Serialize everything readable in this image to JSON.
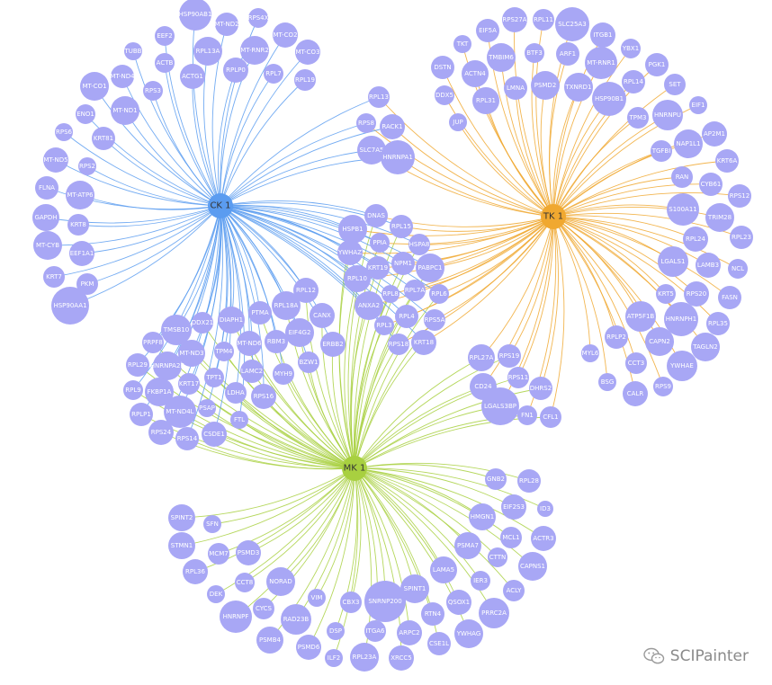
{
  "colors": {
    "ck": "#5b9cf0",
    "tk": "#f0a830",
    "mk": "#a8d040",
    "node": "#a8a7f5",
    "hub_ck": "#5b9cf0",
    "hub_tk": "#f0a830",
    "hub_mk": "#a8d040"
  },
  "hubs": [
    {
      "id": "ck",
      "label": "CK 1"
    },
    {
      "id": "tk",
      "label": "TK 1"
    },
    {
      "id": "mk",
      "label": "MK 1"
    }
  ],
  "nodes": [
    {
      "label": "HSP90AB1",
      "links": [
        "ck"
      ]
    },
    {
      "label": "EEF2",
      "links": [
        "ck"
      ]
    },
    {
      "label": "MT-ND2",
      "links": [
        "ck"
      ]
    },
    {
      "label": "RPS4X",
      "links": [
        "ck"
      ]
    },
    {
      "label": "MT-CO2",
      "links": [
        "ck"
      ]
    },
    {
      "label": "TUBB",
      "links": [
        "ck"
      ]
    },
    {
      "label": "ACTB",
      "links": [
        "ck"
      ]
    },
    {
      "label": "RPL13A",
      "links": [
        "ck"
      ]
    },
    {
      "label": "MT-RNR2",
      "links": [
        "ck"
      ]
    },
    {
      "label": "MT-CO3",
      "links": [
        "ck"
      ]
    },
    {
      "label": "MT-ND4",
      "links": [
        "ck"
      ]
    },
    {
      "label": "ACTG1",
      "links": [
        "ck"
      ]
    },
    {
      "label": "RPLP0",
      "links": [
        "ck"
      ]
    },
    {
      "label": "RPL7",
      "links": [
        "ck"
      ]
    },
    {
      "label": "RPL19",
      "links": [
        "ck"
      ]
    },
    {
      "label": "MT-CO1",
      "links": [
        "ck"
      ]
    },
    {
      "label": "RPS3",
      "links": [
        "ck"
      ]
    },
    {
      "label": "MT-ND1",
      "links": [
        "ck"
      ]
    },
    {
      "label": "ENO1",
      "links": [
        "ck"
      ]
    },
    {
      "label": "RPS6",
      "links": [
        "ck"
      ]
    },
    {
      "label": "KRT81",
      "links": [
        "ck"
      ]
    },
    {
      "label": "MT-ND5",
      "links": [
        "ck"
      ]
    },
    {
      "label": "RPS2",
      "links": [
        "ck"
      ]
    },
    {
      "label": "FLNA",
      "links": [
        "ck"
      ]
    },
    {
      "label": "MT-ATP6",
      "links": [
        "ck"
      ]
    },
    {
      "label": "GAPDH",
      "links": [
        "ck"
      ]
    },
    {
      "label": "KRT8",
      "links": [
        "ck"
      ]
    },
    {
      "label": "MT-CYB",
      "links": [
        "ck"
      ]
    },
    {
      "label": "EEF1A1",
      "links": [
        "ck"
      ]
    },
    {
      "label": "KRT7",
      "links": [
        "ck"
      ]
    },
    {
      "label": "PKM",
      "links": [
        "ck"
      ]
    },
    {
      "label": "HSP90AA1",
      "links": [
        "ck"
      ]
    },
    {
      "label": "RPL13",
      "links": [
        "ck",
        "tk"
      ]
    },
    {
      "label": "RPS8",
      "links": [
        "ck",
        "tk"
      ]
    },
    {
      "label": "RACK1",
      "links": [
        "ck",
        "tk"
      ]
    },
    {
      "label": "SLC7A5",
      "links": [
        "ck",
        "tk"
      ]
    },
    {
      "label": "HNRNPA1",
      "links": [
        "ck",
        "tk"
      ]
    },
    {
      "label": "EIF5A",
      "links": [
        "tk"
      ]
    },
    {
      "label": "RPS27A",
      "links": [
        "tk"
      ]
    },
    {
      "label": "RPL11",
      "links": [
        "tk"
      ]
    },
    {
      "label": "SLC25A3",
      "links": [
        "tk"
      ]
    },
    {
      "label": "ITGB1",
      "links": [
        "tk"
      ]
    },
    {
      "label": "TKT",
      "links": [
        "tk"
      ]
    },
    {
      "label": "TMBIM6",
      "links": [
        "tk"
      ]
    },
    {
      "label": "BTF3",
      "links": [
        "tk"
      ]
    },
    {
      "label": "ARF1",
      "links": [
        "tk"
      ]
    },
    {
      "label": "MT-RNR1",
      "links": [
        "tk"
      ]
    },
    {
      "label": "YBX1",
      "links": [
        "tk"
      ]
    },
    {
      "label": "DSTN",
      "links": [
        "tk"
      ]
    },
    {
      "label": "ACTN4",
      "links": [
        "tk"
      ]
    },
    {
      "label": "LMNA",
      "links": [
        "tk"
      ]
    },
    {
      "label": "PSMD2",
      "links": [
        "tk"
      ]
    },
    {
      "label": "TXNRD1",
      "links": [
        "tk"
      ]
    },
    {
      "label": "PGK1",
      "links": [
        "tk"
      ]
    },
    {
      "label": "DDX5",
      "links": [
        "tk"
      ]
    },
    {
      "label": "RPL31",
      "links": [
        "tk"
      ]
    },
    {
      "label": "HSP90B1",
      "links": [
        "tk"
      ]
    },
    {
      "label": "RPL14",
      "links": [
        "tk"
      ]
    },
    {
      "label": "SET",
      "links": [
        "tk"
      ]
    },
    {
      "label": "JUP",
      "links": [
        "tk"
      ]
    },
    {
      "label": "TPM3",
      "links": [
        "tk"
      ]
    },
    {
      "label": "HNRNPU",
      "links": [
        "tk"
      ]
    },
    {
      "label": "EIF1",
      "links": [
        "tk"
      ]
    },
    {
      "label": "AP2M1",
      "links": [
        "tk"
      ]
    },
    {
      "label": "NAP1L1",
      "links": [
        "tk"
      ]
    },
    {
      "label": "TGFBI",
      "links": [
        "tk"
      ]
    },
    {
      "label": "KRT6A",
      "links": [
        "tk"
      ]
    },
    {
      "label": "RAN",
      "links": [
        "tk"
      ]
    },
    {
      "label": "CYB61",
      "links": [
        "tk"
      ]
    },
    {
      "label": "RPS12",
      "links": [
        "tk"
      ]
    },
    {
      "label": "S100A11",
      "links": [
        "tk"
      ]
    },
    {
      "label": "TRIM28",
      "links": [
        "tk"
      ]
    },
    {
      "label": "RPL24",
      "links": [
        "tk"
      ]
    },
    {
      "label": "RPL23",
      "links": [
        "tk"
      ]
    },
    {
      "label": "LGALS1",
      "links": [
        "tk"
      ]
    },
    {
      "label": "LAMB3",
      "links": [
        "tk"
      ]
    },
    {
      "label": "NCL",
      "links": [
        "tk"
      ]
    },
    {
      "label": "KRT5",
      "links": [
        "tk"
      ]
    },
    {
      "label": "RPS20",
      "links": [
        "tk"
      ]
    },
    {
      "label": "FASN",
      "links": [
        "tk"
      ]
    },
    {
      "label": "ATP5F1B",
      "links": [
        "tk"
      ]
    },
    {
      "label": "HNRNPH1",
      "links": [
        "tk"
      ]
    },
    {
      "label": "RPL35",
      "links": [
        "tk"
      ]
    },
    {
      "label": "RPLP2",
      "links": [
        "tk"
      ]
    },
    {
      "label": "CAPN2",
      "links": [
        "tk"
      ]
    },
    {
      "label": "TAGLN2",
      "links": [
        "tk"
      ]
    },
    {
      "label": "MYL6",
      "links": [
        "tk"
      ]
    },
    {
      "label": "CCT3",
      "links": [
        "tk"
      ]
    },
    {
      "label": "YWHAE",
      "links": [
        "tk"
      ]
    },
    {
      "label": "BSG",
      "links": [
        "tk"
      ]
    },
    {
      "label": "RPS9",
      "links": [
        "tk"
      ]
    },
    {
      "label": "CALR",
      "links": [
        "tk"
      ]
    },
    {
      "label": "DNAS",
      "links": [
        "ck",
        "tk",
        "mk"
      ]
    },
    {
      "label": "HSPB1",
      "links": [
        "ck",
        "tk",
        "mk"
      ]
    },
    {
      "label": "RPL15",
      "links": [
        "ck",
        "tk",
        "mk"
      ]
    },
    {
      "label": "PPIA",
      "links": [
        "ck",
        "tk",
        "mk"
      ]
    },
    {
      "label": "HSPA8",
      "links": [
        "ck",
        "tk",
        "mk"
      ]
    },
    {
      "label": "YWHAZ",
      "links": [
        "ck",
        "tk",
        "mk"
      ]
    },
    {
      "label": "NPM1",
      "links": [
        "ck",
        "tk",
        "mk"
      ]
    },
    {
      "label": "KRT19",
      "links": [
        "ck",
        "tk",
        "mk"
      ]
    },
    {
      "label": "PABPC1",
      "links": [
        "ck",
        "tk",
        "mk"
      ]
    },
    {
      "label": "RPL10",
      "links": [
        "ck",
        "tk",
        "mk"
      ]
    },
    {
      "label": "RPL8",
      "links": [
        "ck",
        "tk",
        "mk"
      ]
    },
    {
      "label": "RPL7A",
      "links": [
        "ck",
        "tk",
        "mk"
      ]
    },
    {
      "label": "RPL6",
      "links": [
        "ck",
        "tk",
        "mk"
      ]
    },
    {
      "label": "ANXA2",
      "links": [
        "ck",
        "tk",
        "mk"
      ]
    },
    {
      "label": "RPL4",
      "links": [
        "ck",
        "tk",
        "mk"
      ]
    },
    {
      "label": "RPS5A",
      "links": [
        "ck",
        "tk",
        "mk"
      ]
    },
    {
      "label": "RPL3",
      "links": [
        "ck",
        "tk",
        "mk"
      ]
    },
    {
      "label": "RPS18",
      "links": [
        "ck",
        "tk",
        "mk"
      ]
    },
    {
      "label": "KRT18",
      "links": [
        "ck",
        "tk",
        "mk"
      ]
    },
    {
      "label": "RPL12",
      "links": [
        "ck",
        "mk"
      ]
    },
    {
      "label": "RPL18A",
      "links": [
        "ck",
        "mk"
      ]
    },
    {
      "label": "CANX",
      "links": [
        "ck",
        "mk"
      ]
    },
    {
      "label": "PTMA",
      "links": [
        "ck",
        "mk"
      ]
    },
    {
      "label": "DIAPH1",
      "links": [
        "ck",
        "mk"
      ]
    },
    {
      "label": "DDX21",
      "links": [
        "ck",
        "mk"
      ]
    },
    {
      "label": "EIF4G2",
      "links": [
        "ck",
        "mk"
      ]
    },
    {
      "label": "ERBB2",
      "links": [
        "ck",
        "mk"
      ]
    },
    {
      "label": "TMSB10",
      "links": [
        "ck",
        "mk"
      ]
    },
    {
      "label": "MT-ND6",
      "links": [
        "ck",
        "mk"
      ]
    },
    {
      "label": "RBM3",
      "links": [
        "ck",
        "mk"
      ]
    },
    {
      "label": "PRPF8",
      "links": [
        "ck",
        "mk"
      ]
    },
    {
      "label": "TPM4",
      "links": [
        "ck",
        "mk"
      ]
    },
    {
      "label": "MT-ND3",
      "links": [
        "ck",
        "mk"
      ]
    },
    {
      "label": "BZW1",
      "links": [
        "ck",
        "mk"
      ]
    },
    {
      "label": "RPL29",
      "links": [
        "ck",
        "mk"
      ]
    },
    {
      "label": "HNRNPA2B",
      "links": [
        "ck",
        "mk"
      ]
    },
    {
      "label": "LAMC2",
      "links": [
        "ck",
        "mk"
      ]
    },
    {
      "label": "TPT1",
      "links": [
        "ck",
        "mk"
      ]
    },
    {
      "label": "MYH9",
      "links": [
        "ck",
        "mk"
      ]
    },
    {
      "label": "RPL9",
      "links": [
        "ck",
        "mk"
      ]
    },
    {
      "label": "FKBP1A",
      "links": [
        "ck",
        "mk"
      ]
    },
    {
      "label": "KRT17",
      "links": [
        "ck",
        "mk"
      ]
    },
    {
      "label": "LDHA",
      "links": [
        "ck",
        "mk"
      ]
    },
    {
      "label": "RPS16",
      "links": [
        "ck",
        "mk"
      ]
    },
    {
      "label": "RPLP1",
      "links": [
        "ck",
        "mk"
      ]
    },
    {
      "label": "MT-ND4L",
      "links": [
        "ck",
        "mk"
      ]
    },
    {
      "label": "PSAP",
      "links": [
        "ck",
        "mk"
      ]
    },
    {
      "label": "FTL",
      "links": [
        "ck",
        "mk"
      ]
    },
    {
      "label": "RPS24",
      "links": [
        "ck",
        "mk"
      ]
    },
    {
      "label": "RPS14",
      "links": [
        "ck",
        "mk"
      ]
    },
    {
      "label": "CSDE1",
      "links": [
        "ck",
        "mk"
      ]
    },
    {
      "label": "RPL27A",
      "links": [
        "tk",
        "mk"
      ]
    },
    {
      "label": "RPS19",
      "links": [
        "tk",
        "mk"
      ]
    },
    {
      "label": "RPS11",
      "links": [
        "tk",
        "mk"
      ]
    },
    {
      "label": "CD24",
      "links": [
        "tk",
        "mk"
      ]
    },
    {
      "label": "DHRS2",
      "links": [
        "tk",
        "mk"
      ]
    },
    {
      "label": "LGALS3BP",
      "links": [
        "tk",
        "mk"
      ]
    },
    {
      "label": "FN1",
      "links": [
        "tk",
        "mk"
      ]
    },
    {
      "label": "CFL1",
      "links": [
        "tk",
        "mk"
      ]
    },
    {
      "label": "GNB2",
      "links": [
        "mk"
      ]
    },
    {
      "label": "RPL28",
      "links": [
        "mk"
      ]
    },
    {
      "label": "SPINT2",
      "links": [
        "mk"
      ]
    },
    {
      "label": "SFN",
      "links": [
        "mk"
      ]
    },
    {
      "label": "EIF2S3",
      "links": [
        "mk"
      ]
    },
    {
      "label": "ID3",
      "links": [
        "mk"
      ]
    },
    {
      "label": "HMGN1",
      "links": [
        "mk"
      ]
    },
    {
      "label": "STMN1",
      "links": [
        "mk"
      ]
    },
    {
      "label": "MCM7",
      "links": [
        "mk"
      ]
    },
    {
      "label": "PSMD3",
      "links": [
        "mk"
      ]
    },
    {
      "label": "MCL1",
      "links": [
        "mk"
      ]
    },
    {
      "label": "ACTR3",
      "links": [
        "mk"
      ]
    },
    {
      "label": "PSMA7",
      "links": [
        "mk"
      ]
    },
    {
      "label": "RPL36",
      "links": [
        "mk"
      ]
    },
    {
      "label": "CTTN",
      "links": [
        "mk"
      ]
    },
    {
      "label": "CCT8",
      "links": [
        "mk"
      ]
    },
    {
      "label": "NORAD",
      "links": [
        "mk"
      ]
    },
    {
      "label": "CAPNS1",
      "links": [
        "mk"
      ]
    },
    {
      "label": "LAMA5",
      "links": [
        "mk"
      ]
    },
    {
      "label": "DEK",
      "links": [
        "mk"
      ]
    },
    {
      "label": "IER3",
      "links": [
        "mk"
      ]
    },
    {
      "label": "SPINT1",
      "links": [
        "mk"
      ]
    },
    {
      "label": "VIM",
      "links": [
        "mk"
      ]
    },
    {
      "label": "ACLY",
      "links": [
        "mk"
      ]
    },
    {
      "label": "CYCS",
      "links": [
        "mk"
      ]
    },
    {
      "label": "CBX3",
      "links": [
        "mk"
      ]
    },
    {
      "label": "SNRNP200",
      "links": [
        "mk"
      ]
    },
    {
      "label": "QSOX1",
      "links": [
        "mk"
      ]
    },
    {
      "label": "HNRNPF",
      "links": [
        "mk"
      ]
    },
    {
      "label": "RTN4",
      "links": [
        "mk"
      ]
    },
    {
      "label": "PRRC2A",
      "links": [
        "mk"
      ]
    },
    {
      "label": "RAD23B",
      "links": [
        "mk"
      ]
    },
    {
      "label": "DSP",
      "links": [
        "mk"
      ]
    },
    {
      "label": "ITGA6",
      "links": [
        "mk"
      ]
    },
    {
      "label": "ARPC2",
      "links": [
        "mk"
      ]
    },
    {
      "label": "YWHAG",
      "links": [
        "mk"
      ]
    },
    {
      "label": "PSMB4",
      "links": [
        "mk"
      ]
    },
    {
      "label": "PSMD6",
      "links": [
        "mk"
      ]
    },
    {
      "label": "CSE1L",
      "links": [
        "mk"
      ]
    },
    {
      "label": "ILF2",
      "links": [
        "mk"
      ]
    },
    {
      "label": "RPL23A",
      "links": [
        "mk"
      ]
    },
    {
      "label": "XRCC5",
      "links": [
        "mk"
      ]
    }
  ],
  "watermark": {
    "text": "SCIPainter",
    "icon": "wechat-icon"
  }
}
